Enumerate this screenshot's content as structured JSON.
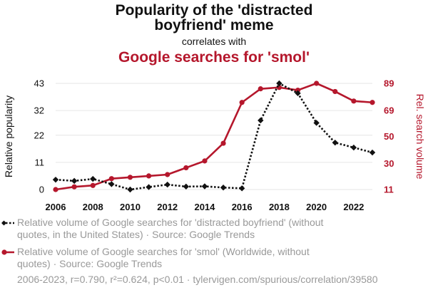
{
  "header": {
    "title_line1": "Popularity of the 'distracted",
    "title_line2": "boyfriend' meme",
    "correlates_with": "correlates with",
    "title2": "Google searches for 'smol'"
  },
  "legend": {
    "series1": "Relative volume of Google searches for 'distracted boyfriend' (without quotes, in the United States) · Source: Google Trends",
    "series2": "Relative volume of Google searches for 'smol' (Worldwide, without quotes) · Source: Google Trends"
  },
  "footer": "2006-2023, r=0.790, r²=0.624, p<0.01 · tylervigen.com/spurious/correlation/39580",
  "colors": {
    "series1": "#111111",
    "series2": "#b5172c",
    "grid": "#e6e6e6",
    "footer": "#999999"
  },
  "chart_data": {
    "type": "line",
    "x": [
      2006,
      2007,
      2008,
      2009,
      2010,
      2011,
      2012,
      2013,
      2014,
      2015,
      2016,
      2017,
      2018,
      2019,
      2020,
      2021,
      2022,
      2023
    ],
    "xticks": [
      "2006",
      "2008",
      "2010",
      "2012",
      "2014",
      "2016",
      "2018",
      "2020",
      "2022"
    ],
    "series": [
      {
        "name": "Relative volume of Google searches for 'distracted boyfriend' (without quotes, in the United States)",
        "axis": "left",
        "values": [
          4,
          3.5,
          4.3,
          2.2,
          0,
          1,
          2,
          1.2,
          1.3,
          0.8,
          0.5,
          28,
          43,
          39,
          27,
          19,
          17,
          15
        ]
      },
      {
        "name": "Relative volume of Google searches for 'smol' (Worldwide, without quotes)",
        "axis": "right",
        "values": [
          11,
          13,
          14,
          19,
          20,
          21,
          22,
          27,
          32,
          45,
          75,
          85,
          86,
          84,
          89,
          83,
          76,
          75
        ]
      }
    ],
    "ylabel": "Relative popularity",
    "ylabel_right": "Rel. search volume",
    "yticks_left": [
      "0",
      "11",
      "22",
      "32",
      "43"
    ],
    "yticks_right": [
      "11",
      "30",
      "50",
      "69",
      "89"
    ],
    "ylim": [
      0,
      43
    ],
    "ylim_right": [
      11,
      89
    ],
    "xlim": [
      2006,
      2023
    ]
  }
}
